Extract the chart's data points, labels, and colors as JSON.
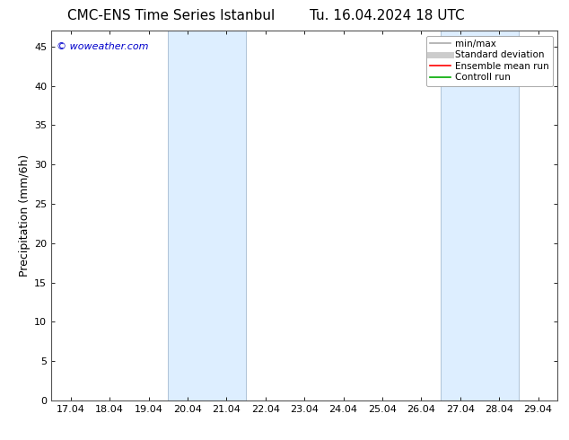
{
  "title_left": "CMC-ENS Time Series Istanbul",
  "title_right": "Tu. 16.04.2024 18 UTC",
  "ylabel": "Precipitation (mm/6h)",
  "watermark": "© woweather.com",
  "watermark_color": "#0000cc",
  "xtick_labels": [
    "17.04",
    "18.04",
    "19.04",
    "20.04",
    "21.04",
    "22.04",
    "23.04",
    "24.04",
    "25.04",
    "26.04",
    "27.04",
    "28.04",
    "29.04"
  ],
  "ylim": [
    0,
    47
  ],
  "yticks": [
    0,
    5,
    10,
    15,
    20,
    25,
    30,
    35,
    40,
    45
  ],
  "shaded_regions": [
    {
      "xstart": 3,
      "xend": 5,
      "color": "#ddeeff"
    },
    {
      "xstart": 10,
      "xend": 12,
      "color": "#ddeeff"
    }
  ],
  "shade_border_color": "#b0c4d8",
  "background_color": "#ffffff",
  "legend_items": [
    {
      "label": "min/max",
      "color": "#aaaaaa",
      "lw": 1.2
    },
    {
      "label": "Standard deviation",
      "color": "#cccccc",
      "lw": 5
    },
    {
      "label": "Ensemble mean run",
      "color": "#ff0000",
      "lw": 1.2
    },
    {
      "label": "Controll run",
      "color": "#00aa00",
      "lw": 1.2
    }
  ],
  "title_fontsize": 11,
  "ylabel_fontsize": 9,
  "tick_fontsize": 8,
  "legend_fontsize": 7.5,
  "watermark_fontsize": 8
}
